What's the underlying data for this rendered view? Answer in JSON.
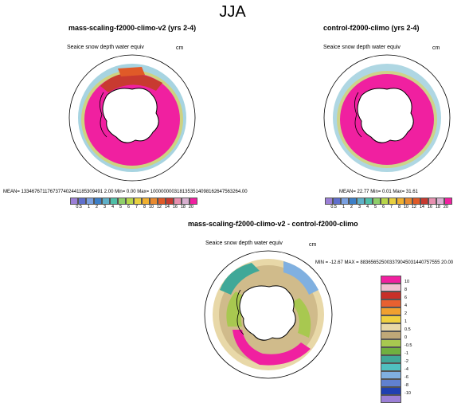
{
  "figure": {
    "title": "JJA"
  },
  "panels": {
    "top_left": {
      "title": "mass-scaling-f2000-climo-v2 (yrs 2-4)",
      "subtitle": "Seaice snow depth water equiv",
      "units": "cm",
      "stats": "MEAN= 1334676711767377402441185309491 2.00   Min=  0.00  Max=  1000000003181353514098162647563264.00"
    },
    "top_right": {
      "title": "control-f2000-climo (yrs 2-4)",
      "subtitle": "Seaice snow depth water equiv",
      "units": "cm",
      "stats": "MEAN=  22.77   Min=   0.01   Max=   31.61"
    },
    "bottom": {
      "title": "mass-scaling-f2000-climo-v2 - control-f2000-climo",
      "subtitle": "Seaice snow depth water equiv",
      "units": "cm",
      "stats": "MIN = -12.67  MAX = 883656525003379045031440757555 20.00"
    }
  },
  "colorbar_top": {
    "labels": [
      "0.5",
      "1",
      "2",
      "3",
      "4",
      "5",
      "6",
      "7",
      "8",
      "10",
      "12",
      "14",
      "16",
      "18",
      "20"
    ],
    "colors": [
      "#9b7fd6",
      "#5f6fcc",
      "#7aa0e0",
      "#3d7fc7",
      "#5fb0c8",
      "#4fbfa8",
      "#8fcf6a",
      "#b8d64a",
      "#e8d040",
      "#f0b030",
      "#e88a30",
      "#e05a28",
      "#c83a30",
      "#e890b0",
      "#d8b0d0",
      "#f020a0"
    ]
  },
  "colorbar_diff": {
    "labels": [
      "10",
      "8",
      "6",
      "4",
      "2",
      "1",
      "0.5",
      "0",
      "-0.5",
      "-1",
      "-2",
      "-4",
      "-6",
      "-8",
      "-10"
    ],
    "colors": [
      "#f020a0",
      "#f0c0d0",
      "#c83028",
      "#e86030",
      "#f0a030",
      "#f0d040",
      "#e8d8a8",
      "#c0a878",
      "#a8c850",
      "#70b040",
      "#40a898",
      "#50c0c0",
      "#80b0e0",
      "#6080d0",
      "#2040b0",
      "#9b7fd6"
    ]
  }
}
